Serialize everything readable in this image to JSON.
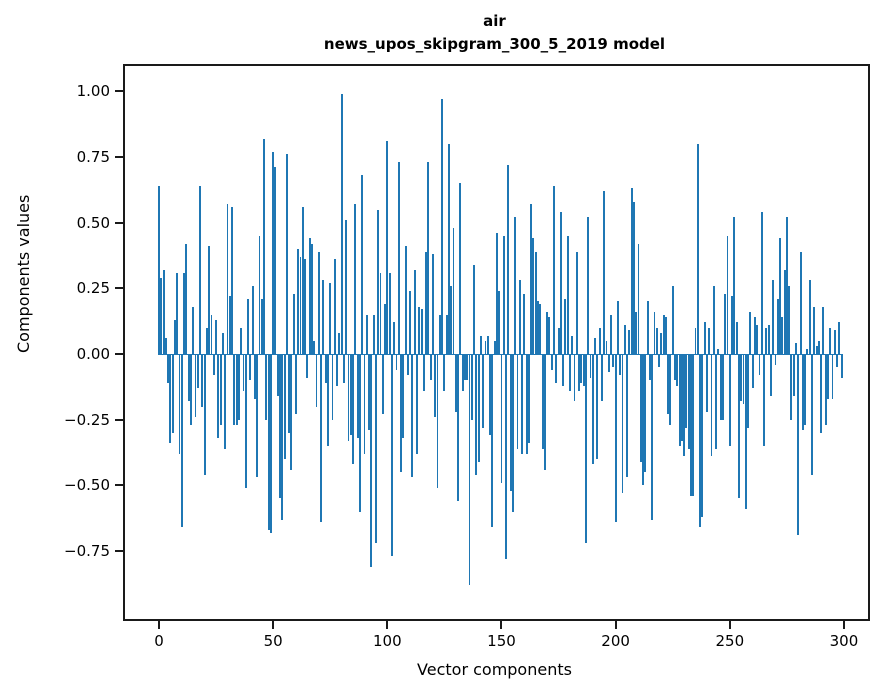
{
  "figure": {
    "title_line1": "air",
    "title_line2": "news_upos_skipgram_300_5_2019 model"
  },
  "chart_data": {
    "type": "bar",
    "title": "air\nnews_upos_skipgram_300_5_2019 model",
    "xlabel": "Vector components",
    "ylabel": "Components values",
    "bar_color": "#1f77b4",
    "spine_color": "#1a1a1a",
    "grid": false,
    "legend": null,
    "n_components": 300,
    "xticks": [
      0,
      50,
      100,
      150,
      200,
      250,
      300
    ],
    "yticks": [
      1.0,
      0.75,
      0.5,
      0.25,
      0.0,
      -0.25,
      -0.5,
      -0.75
    ],
    "xlim": [
      -14.9,
      310.5
    ],
    "ylim": [
      -1.01,
      1.1
    ],
    "values": [
      0.64,
      0.29,
      0.32,
      0.06,
      -0.11,
      -0.34,
      -0.3,
      0.13,
      0.31,
      -0.38,
      -0.66,
      0.31,
      0.42,
      -0.18,
      -0.27,
      0.18,
      -0.24,
      -0.13,
      0.64,
      -0.2,
      -0.46,
      0.1,
      0.41,
      0.15,
      -0.08,
      0.13,
      -0.32,
      -0.27,
      0.08,
      -0.36,
      0.57,
      0.22,
      0.56,
      -0.27,
      -0.27,
      -0.25,
      0.1,
      -0.14,
      -0.51,
      0.21,
      -0.1,
      0.26,
      -0.17,
      -0.47,
      0.45,
      0.21,
      0.82,
      -0.25,
      -0.67,
      -0.68,
      0.77,
      0.71,
      -0.16,
      -0.55,
      -0.63,
      -0.4,
      0.76,
      -0.3,
      -0.44,
      0.23,
      -0.23,
      0.4,
      0.37,
      0.56,
      0.36,
      -0.09,
      0.44,
      0.42,
      0.05,
      -0.2,
      0.39,
      -0.64,
      0.28,
      -0.11,
      -0.35,
      0.27,
      -0.25,
      0.36,
      -0.12,
      0.08,
      0.99,
      -0.11,
      0.51,
      -0.33,
      -0.31,
      -0.42,
      0.57,
      -0.32,
      -0.6,
      0.68,
      -0.38,
      0.15,
      -0.29,
      -0.81,
      0.15,
      -0.72,
      0.55,
      0.31,
      -0.23,
      0.19,
      0.81,
      0.31,
      -0.77,
      0.12,
      -0.06,
      0.73,
      -0.45,
      -0.32,
      0.41,
      -0.08,
      0.24,
      -0.47,
      0.32,
      -0.38,
      0.18,
      0.17,
      -0.14,
      0.39,
      0.73,
      -0.1,
      0.38,
      -0.24,
      -0.51,
      0.15,
      0.97,
      -0.14,
      0.15,
      0.8,
      0.26,
      0.48,
      -0.22,
      -0.56,
      0.65,
      -0.14,
      -0.1,
      -0.1,
      -0.88,
      -0.25,
      0.34,
      -0.46,
      -0.41,
      0.07,
      -0.28,
      0.05,
      0.07,
      -0.31,
      -0.66,
      0.05,
      0.46,
      0.24,
      -0.49,
      0.45,
      -0.78,
      0.72,
      -0.52,
      -0.6,
      0.52,
      -0.36,
      0.28,
      -0.38,
      0.23,
      -0.38,
      -0.34,
      0.57,
      0.44,
      0.39,
      0.2,
      0.19,
      -0.36,
      -0.44,
      0.16,
      0.14,
      -0.06,
      0.64,
      -0.11,
      0.1,
      0.54,
      -0.12,
      0.21,
      0.45,
      -0.14,
      0.07,
      -0.18,
      0.39,
      -0.14,
      -0.11,
      -0.12,
      -0.72,
      0.52,
      -0.09,
      -0.42,
      0.06,
      -0.4,
      0.1,
      -0.18,
      0.62,
      0.05,
      -0.07,
      0.15,
      -0.05,
      -0.64,
      0.2,
      -0.08,
      -0.53,
      0.11,
      -0.47,
      0.09,
      0.63,
      0.58,
      0.16,
      0.42,
      -0.41,
      -0.5,
      -0.45,
      0.2,
      -0.1,
      -0.63,
      0.16,
      0.1,
      -0.05,
      0.08,
      0.15,
      0.14,
      -0.23,
      -0.27,
      0.26,
      -0.1,
      -0.12,
      -0.35,
      -0.33,
      -0.39,
      -0.28,
      -0.36,
      -0.54,
      -0.54,
      0.1,
      0.8,
      -0.66,
      -0.62,
      0.12,
      -0.22,
      0.1,
      -0.39,
      0.26,
      -0.36,
      0.02,
      -0.25,
      -0.25,
      0.23,
      0.45,
      -0.35,
      0.22,
      0.52,
      0.12,
      -0.55,
      -0.18,
      -0.19,
      -0.59,
      -0.28,
      0.16,
      -0.13,
      0.14,
      0.11,
      -0.08,
      0.54,
      -0.35,
      0.1,
      0.11,
      -0.16,
      0.28,
      -0.04,
      0.21,
      0.44,
      0.14,
      0.32,
      0.52,
      0.26,
      -0.25,
      -0.16,
      0.04,
      -0.69,
      0.39,
      -0.29,
      -0.27,
      0.02,
      0.28,
      -0.46,
      0.18,
      0.03,
      0.05,
      -0.3,
      0.18,
      -0.27,
      -0.17,
      0.1,
      -0.17,
      0.09,
      -0.05,
      0.12,
      -0.09
    ]
  }
}
